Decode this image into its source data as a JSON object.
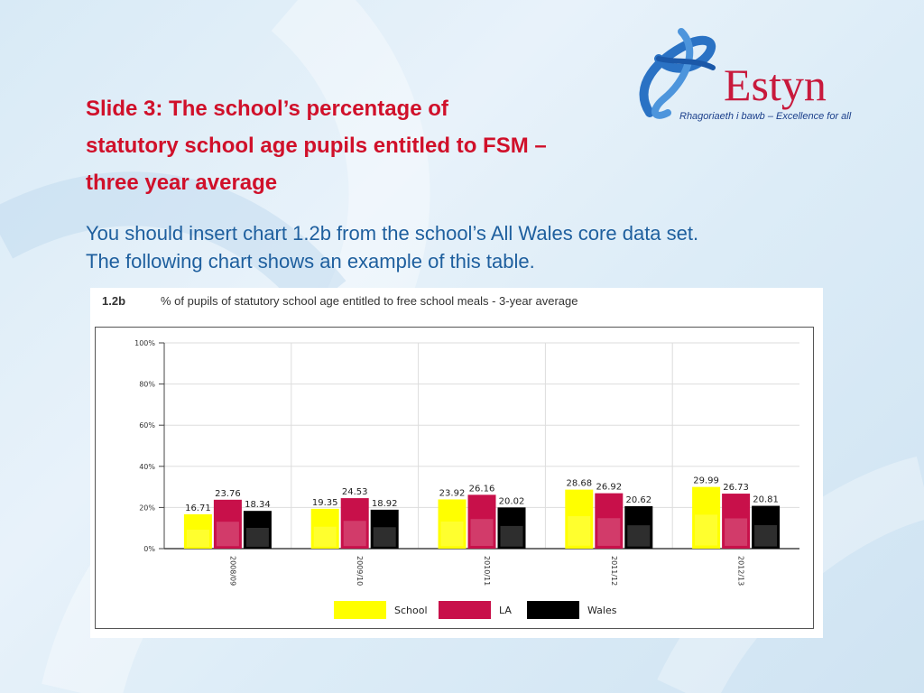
{
  "slide": {
    "title_lines": [
      "Slide 3:  The school’s percentage of",
      "statutory school age pupils entitled to FSM –",
      "three year average"
    ],
    "body_lines": [
      "You should insert chart 1.2b from the school’s All Wales core data set.",
      "The following chart shows an example of this table."
    ]
  },
  "logo": {
    "name": "Estyn",
    "tagline": "Rhagoriaeth i bawb – Excellence for all",
    "colors": {
      "word": "#c8193c",
      "swirl": "#2a72c4"
    }
  },
  "chart_data": {
    "type": "bar",
    "code": "1.2b",
    "title": "% of pupils of statutory school age entitled to free school meals - 3-year average",
    "categories": [
      "2008/09",
      "2009/10",
      "2010/11",
      "2011/12",
      "2012/13"
    ],
    "series": [
      {
        "name": "School",
        "color": "#ffff00",
        "values": [
          16.71,
          19.35,
          23.92,
          28.68,
          29.99
        ]
      },
      {
        "name": "LA",
        "color": "#c8104a",
        "values": [
          23.76,
          24.53,
          26.16,
          26.92,
          26.73
        ]
      },
      {
        "name": "Wales",
        "color": "#000000",
        "values": [
          18.34,
          18.92,
          20.02,
          20.62,
          20.81
        ]
      }
    ],
    "yticks": [
      "0%",
      "20%",
      "40%",
      "60%",
      "80%",
      "100%"
    ],
    "ylim": [
      0,
      100
    ],
    "grid": true,
    "legend_position": "bottom"
  }
}
